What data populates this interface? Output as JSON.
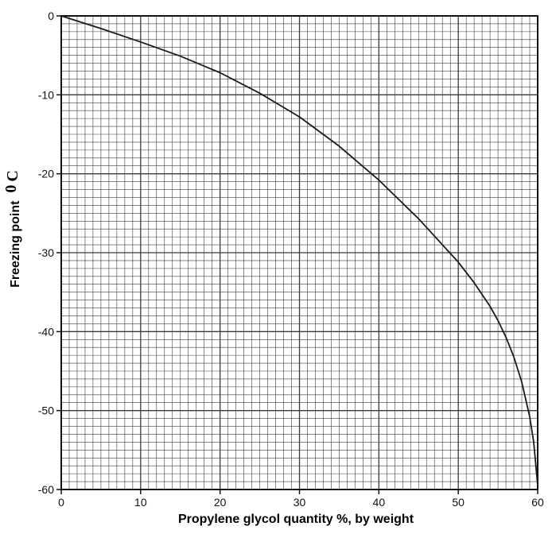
{
  "chart_data": {
    "type": "line",
    "title": "",
    "xlabel": "Propylene glycol quantity %, by weight",
    "ylabel": "Freezing point",
    "ylabel_unit_sup": "0",
    "ylabel_unit": "C",
    "xlim": [
      0,
      60
    ],
    "ylim": [
      -60,
      0
    ],
    "x_ticks": [
      0,
      10,
      20,
      30,
      40,
      50,
      60
    ],
    "y_ticks": [
      0,
      -10,
      -20,
      -30,
      -40,
      -50,
      -60
    ],
    "x_tick_labels": [
      "0",
      "10",
      "20",
      "30",
      "40",
      "50",
      "60"
    ],
    "y_tick_labels": [
      "0",
      "-10",
      "-20",
      "-30",
      "-40",
      "-50",
      "-60"
    ],
    "grid": true,
    "grid_minor_step_x": 1,
    "grid_minor_step_y": 1,
    "series": [
      {
        "x": [
          0,
          5,
          10,
          15,
          20,
          25,
          30,
          35,
          40,
          45,
          50,
          52,
          54,
          55,
          56,
          57,
          58,
          59,
          59.5,
          60
        ],
        "y": [
          0,
          -1.6,
          -3.3,
          -5.1,
          -7.2,
          -9.8,
          -12.8,
          -16.5,
          -20.8,
          -25.7,
          -31.2,
          -33.8,
          -36.8,
          -38.6,
          -40.7,
          -43.2,
          -46.4,
          -50.8,
          -54.0,
          -59.5
        ]
      }
    ],
    "colors": {
      "line": "#1a1a1a",
      "grid": "#3a3a3a",
      "background": "#ffffff"
    }
  }
}
